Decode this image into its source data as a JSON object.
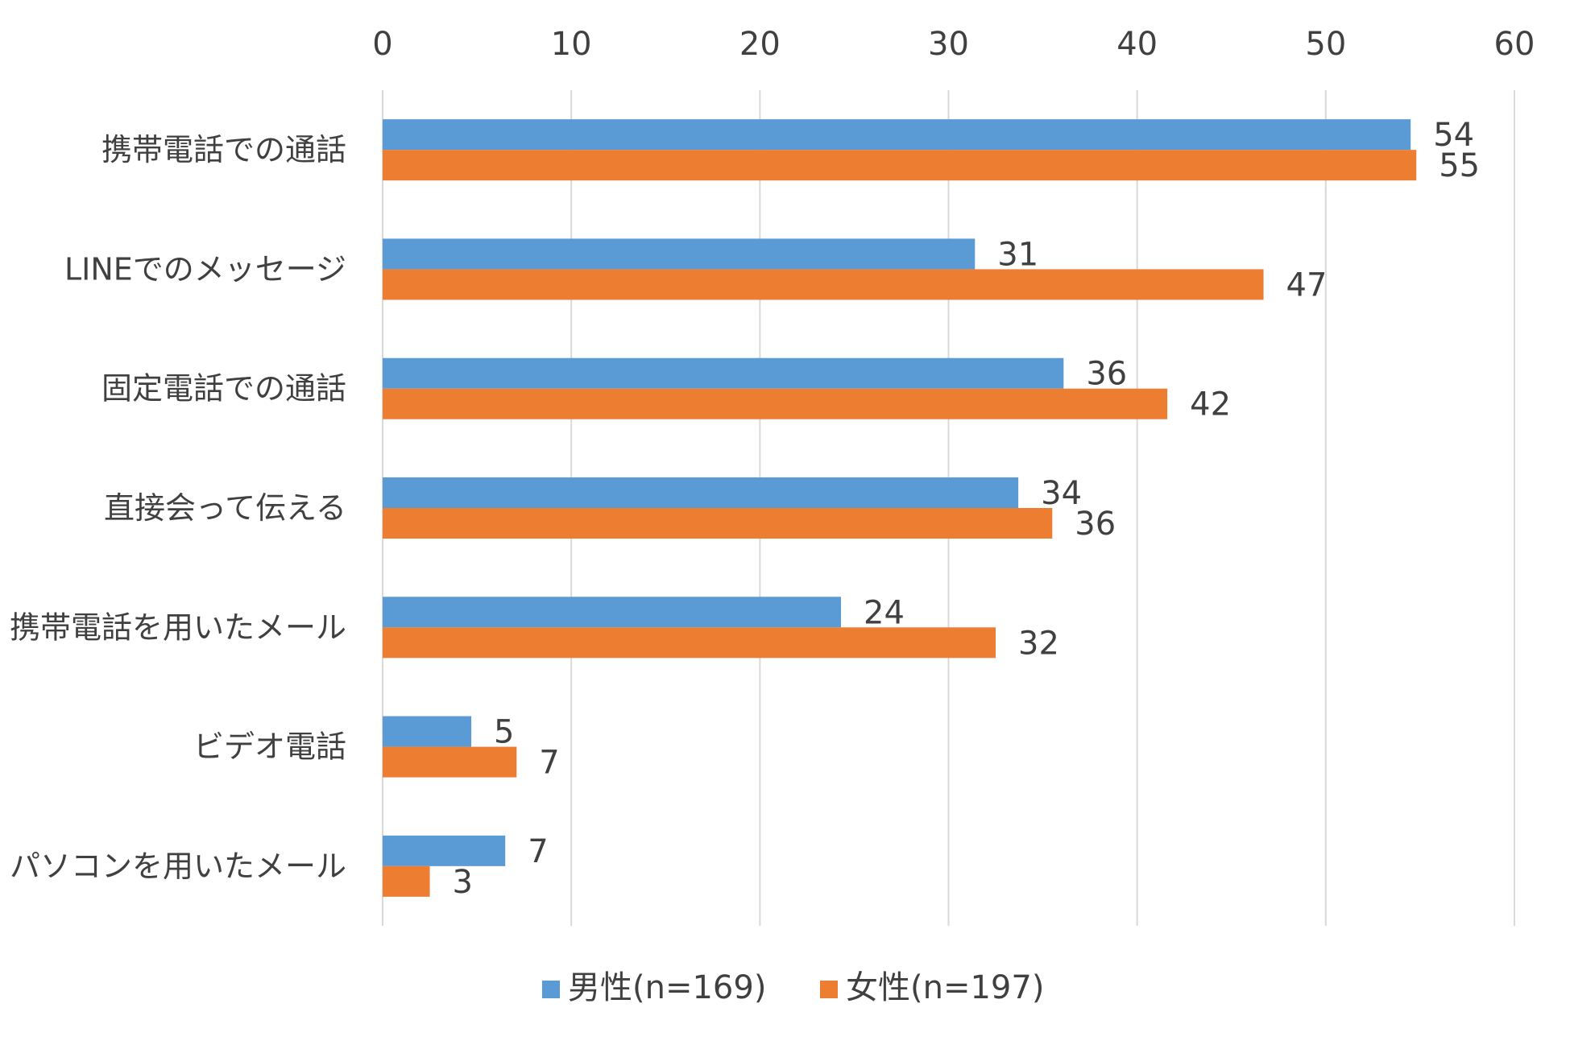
{
  "chart_data": {
    "type": "bar",
    "orientation": "horizontal",
    "title": "",
    "xlabel": "",
    "ylabel": "",
    "xlim": [
      0,
      60
    ],
    "ticks": [
      0,
      10,
      20,
      30,
      40,
      50,
      60
    ],
    "tick_labels": [
      "0",
      "10",
      "20",
      "30",
      "40",
      "50",
      "60"
    ],
    "axis_position": "top",
    "grid": true,
    "legend_position": "bottom",
    "categories": [
      "携帯電話での通話",
      "LINEでのメッセージ",
      "固定電話での通話",
      "直接会って伝える",
      "携帯電話を用いたメール",
      "ビデオ電話",
      "パソコンを用いたメール"
    ],
    "series": [
      {
        "name": "男性(n=169)",
        "color": "#5B9BD5",
        "values": [
          54.5,
          31.4,
          36.1,
          33.7,
          24.3,
          4.7,
          6.5
        ],
        "labels": [
          "54",
          "31",
          "36",
          "34",
          "24",
          "5",
          "7"
        ]
      },
      {
        "name": "女性(n=197)",
        "color": "#ED7D31",
        "values": [
          54.8,
          46.7,
          41.6,
          35.5,
          32.5,
          7.1,
          2.5
        ],
        "labels": [
          "55",
          "47",
          "42",
          "36",
          "32",
          "7",
          "3"
        ]
      }
    ]
  },
  "colors": {
    "grid": "#D9D9D9",
    "text": "#404040"
  }
}
